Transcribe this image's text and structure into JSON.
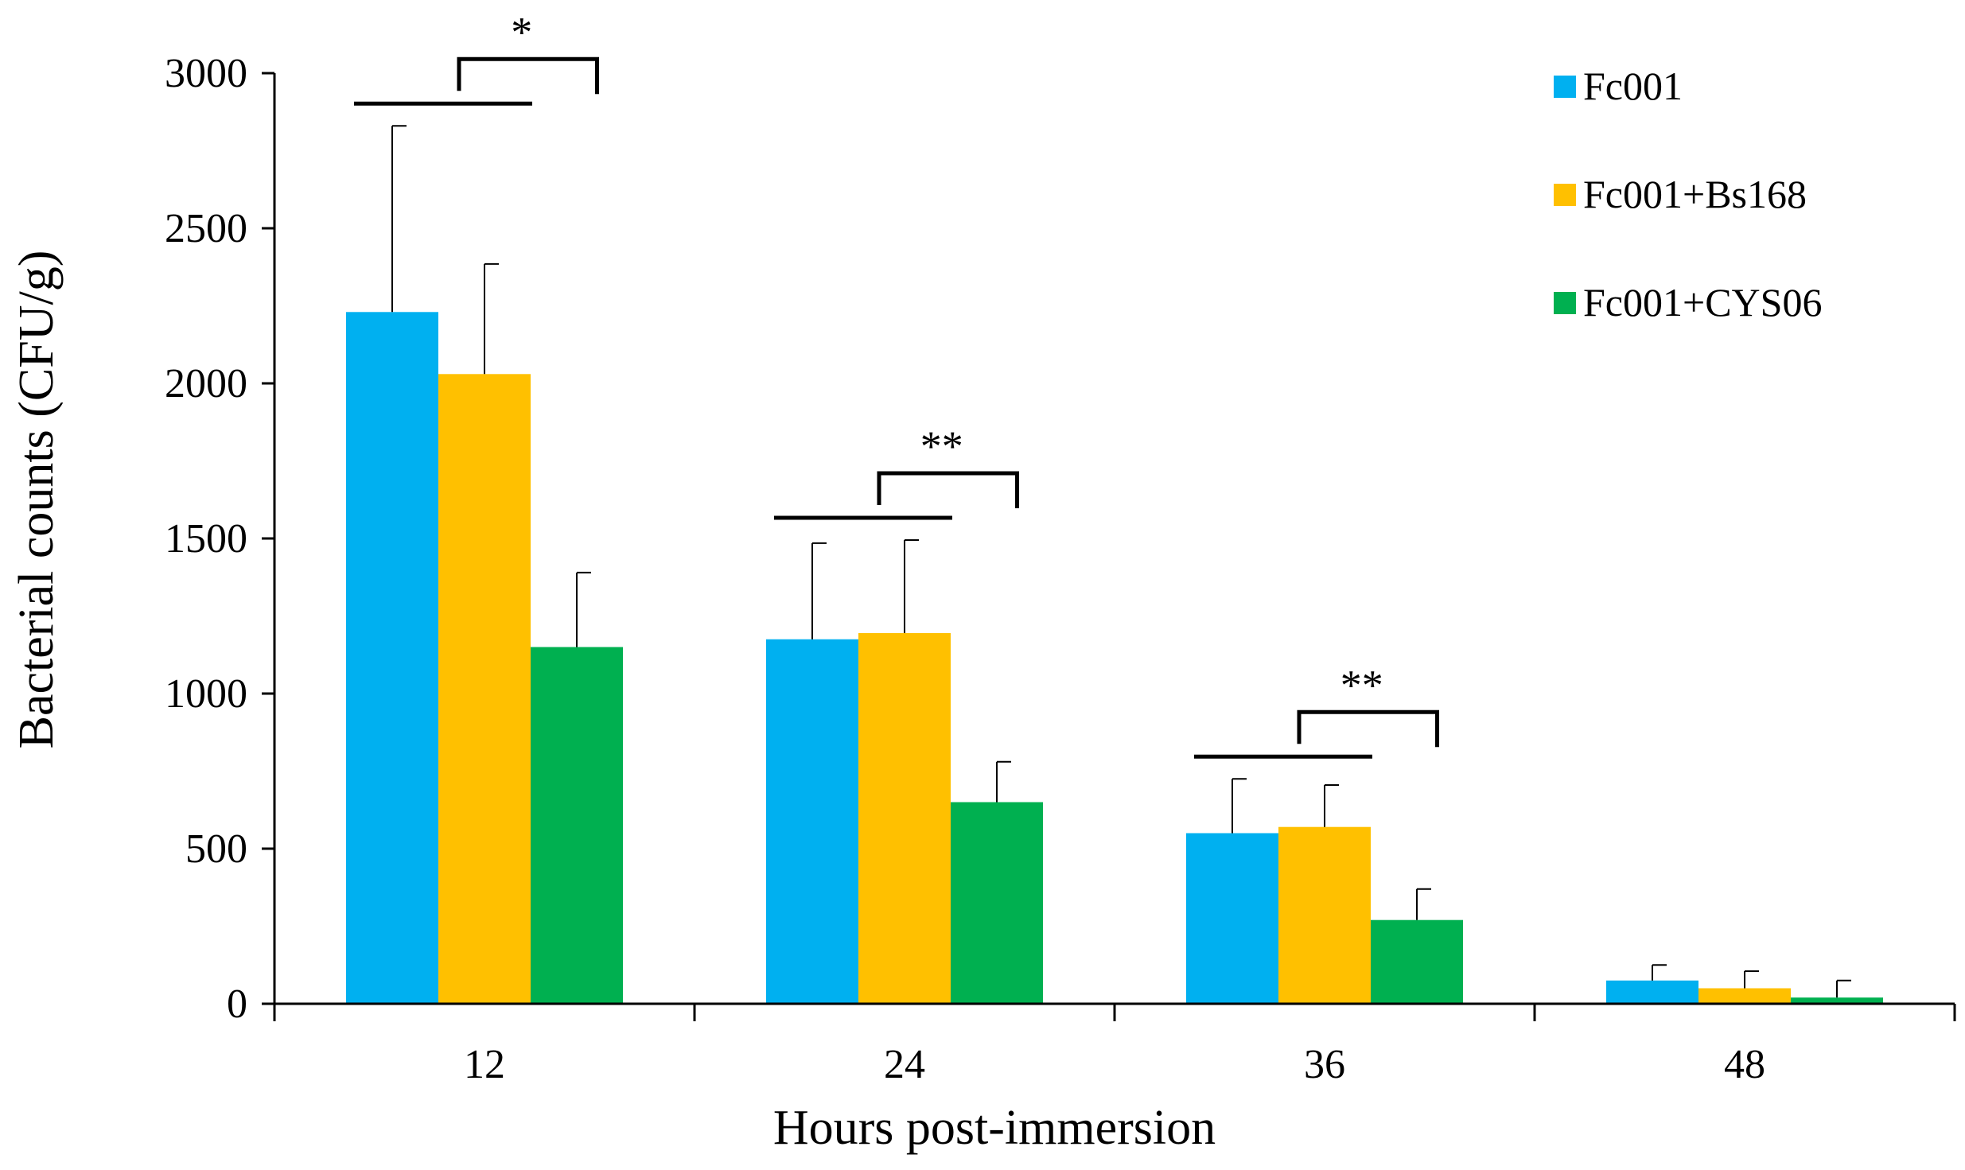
{
  "chart_data": {
    "type": "bar",
    "title": "",
    "xlabel": "Hours post-immersion",
    "ylabel": "Bacterial counts (CFU/g)",
    "ylim": [
      0,
      3000
    ],
    "yticks": [
      0,
      500,
      1000,
      1500,
      2000,
      2500,
      3000
    ],
    "categories": [
      "12",
      "24",
      "36",
      "48"
    ],
    "legend_position": "top-right",
    "series": [
      {
        "name": "Fc001",
        "color": "#00B0F0",
        "values": [
          2230,
          1175,
          550,
          75
        ],
        "errors": [
          600,
          310,
          175,
          50
        ]
      },
      {
        "name": "Fc001+Bs168",
        "color": "#FFC000",
        "values": [
          2030,
          1195,
          570,
          50
        ],
        "errors": [
          355,
          300,
          135,
          55
        ]
      },
      {
        "name": "Fc001+CYS06",
        "color": "#00B050",
        "values": [
          1150,
          650,
          270,
          20
        ],
        "errors": [
          240,
          130,
          100,
          55
        ]
      }
    ],
    "significance": [
      {
        "category": "12",
        "label": "*"
      },
      {
        "category": "24",
        "label": "**"
      },
      {
        "category": "36",
        "label": "**"
      }
    ]
  }
}
